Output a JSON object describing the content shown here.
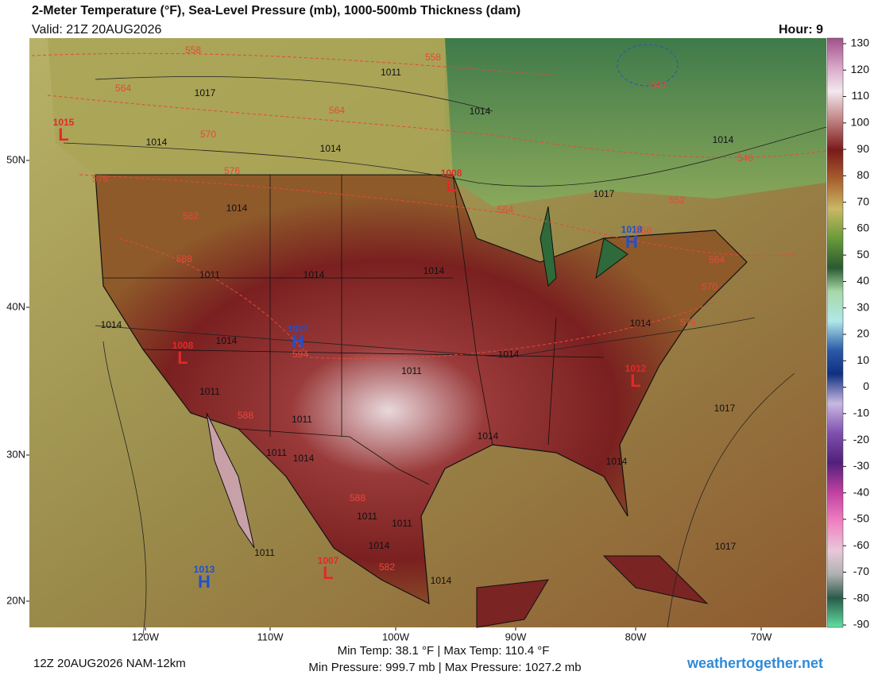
{
  "header": {
    "title": "2-Meter Temperature (°F), Sea-Level Pressure (mb), 1000-500mb Thickness (dam)",
    "valid": "Valid: 21Z 20AUG2026",
    "hour": "Hour: 9"
  },
  "map": {
    "lat_labels": [
      "50N",
      "40N",
      "30N",
      "20N"
    ],
    "lon_labels": [
      "120W",
      "110W",
      "100W",
      "90W",
      "80W",
      "70W"
    ],
    "pressure_centers": [
      {
        "letter": "L",
        "value": "1015"
      },
      {
        "letter": "L",
        "value": "1008"
      },
      {
        "letter": "H",
        "value": "1018"
      },
      {
        "letter": "H",
        "value": "1027"
      },
      {
        "letter": "L",
        "value": "1008"
      },
      {
        "letter": "L",
        "value": "1012"
      },
      {
        "letter": "H",
        "value": "1013"
      },
      {
        "letter": "L",
        "value": "1007"
      }
    ],
    "isobar_labels": [
      "1017",
      "1011",
      "1014",
      "1014",
      "1014",
      "1014",
      "1017",
      "1014",
      "1011",
      "1014",
      "1014",
      "1014",
      "1014",
      "1014",
      "1011",
      "1014",
      "1011",
      "1011",
      "1014",
      "1011",
      "1014",
      "1017",
      "1014",
      "1011",
      "1011",
      "1014",
      "1011",
      "1014",
      "1017"
    ],
    "thickness_labels": [
      "558",
      "558",
      "564",
      "564",
      "570",
      "576",
      "576",
      "582",
      "564",
      "588",
      "552",
      "558",
      "564",
      "570",
      "576",
      "594",
      "588",
      "588",
      "582",
      "546",
      "540"
    ]
  },
  "colorbar": {
    "ticks": [
      130,
      120,
      110,
      100,
      90,
      80,
      70,
      60,
      50,
      40,
      30,
      20,
      10,
      0,
      -10,
      -20,
      -30,
      -40,
      -50,
      -60,
      -70,
      -80,
      -90
    ],
    "clim": [
      -90,
      130
    ]
  },
  "footer": {
    "run": "12Z 20AUG2026 NAM-12km",
    "temp_range": "Min Temp:  38.1 °F | Max Temp: 110.4 °F",
    "pressure_range": "Min Pressure: 999.7 mb | Max Pressure: 1027.2 mb",
    "site": "weathertogether.net"
  }
}
